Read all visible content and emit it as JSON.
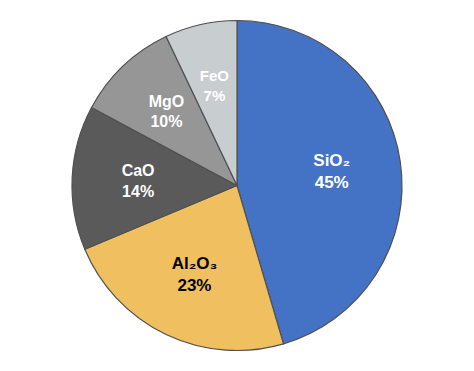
{
  "chart_data": {
    "type": "pie",
    "categories": [
      "SiO₂",
      "Al₂O₃",
      "CaO",
      "MgO",
      "FeO"
    ],
    "values": [
      45,
      23,
      14,
      10,
      7
    ],
    "value_labels": [
      "45%",
      "23%",
      "14%",
      "10%",
      "7%"
    ],
    "colors": [
      "#4472C4",
      "#F0C060",
      "#5A5A5A",
      "#969696",
      "#C8CDD0"
    ],
    "data_labels": true
  }
}
